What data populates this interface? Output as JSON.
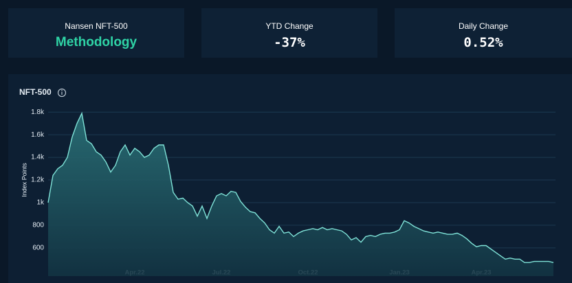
{
  "cards": [
    {
      "label": "Nansen NFT-500",
      "value": "Methodology"
    },
    {
      "label": "YTD Change",
      "value": "-37%"
    },
    {
      "label": "Daily Change",
      "value": "0.52%"
    }
  ],
  "chart_data": {
    "type": "area",
    "title": "NFT-500",
    "y_label": "Index Points",
    "color": "#7fe3d8",
    "values": [
      1000,
      1240,
      1300,
      1330,
      1400,
      1580,
      1700,
      1790,
      1550,
      1520,
      1450,
      1420,
      1360,
      1270,
      1330,
      1450,
      1510,
      1420,
      1480,
      1450,
      1400,
      1420,
      1480,
      1510,
      1510,
      1330,
      1090,
      1030,
      1040,
      1000,
      970,
      880,
      970,
      860,
      970,
      1060,
      1080,
      1060,
      1100,
      1090,
      1010,
      960,
      920,
      910,
      860,
      820,
      760,
      730,
      790,
      730,
      740,
      700,
      730,
      750,
      760,
      770,
      760,
      780,
      760,
      770,
      760,
      750,
      720,
      670,
      690,
      650,
      700,
      710,
      700,
      720,
      730,
      730,
      740,
      760,
      840,
      820,
      790,
      770,
      750,
      740,
      730,
      740,
      730,
      720,
      720,
      730,
      710,
      680,
      640,
      610,
      620,
      620,
      590,
      560,
      530,
      500,
      510,
      500,
      500,
      470,
      470,
      480,
      480,
      480,
      480,
      470
    ],
    "xlim": [
      0,
      105
    ],
    "xticks": [
      {
        "value": 18,
        "label": "Apr.22"
      },
      {
        "value": 36,
        "label": "Jul.22"
      },
      {
        "value": 54,
        "label": "Oct.22"
      },
      {
        "value": 73,
        "label": "Jan.23"
      },
      {
        "value": 90,
        "label": "Apr.23"
      }
    ],
    "ylim": [
      350,
      1850
    ],
    "yticks": [
      600,
      800,
      {
        "value": 1000,
        "label": "1k"
      },
      {
        "value": 1200,
        "label": "1.2k"
      },
      {
        "value": 1400,
        "label": "1.4k"
      },
      {
        "value": 1600,
        "label": "1.6k"
      },
      {
        "value": 1800,
        "label": "1.8k"
      }
    ],
    "grid": true
  }
}
